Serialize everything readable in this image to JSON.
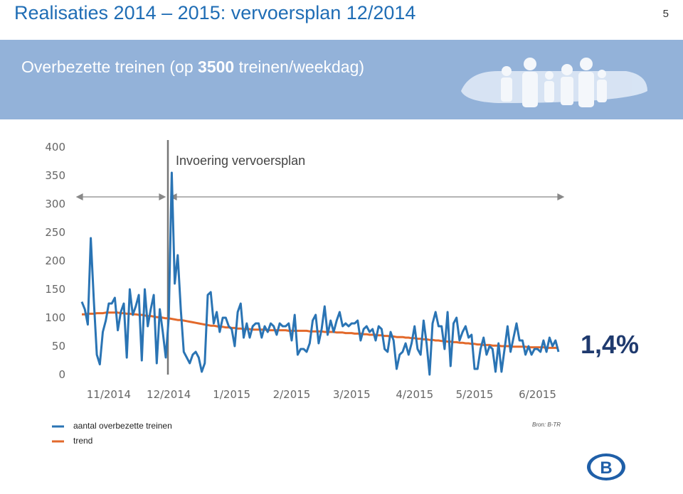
{
  "page_number": "5",
  "header": {
    "title": "Realisaties 2014 – 2015: vervoersplan 12/2014",
    "subtitle_parts": [
      "Overbezette treinen (op ",
      "3500",
      " treinen/weekdag)"
    ]
  },
  "source": "Bron: B-TR",
  "chart_data": {
    "type": "line",
    "annotations": [
      "Invoering vervoersplan",
      "1,4%"
    ],
    "categories": [
      null,
      null,
      null,
      null,
      null,
      null,
      null,
      null,
      null,
      "11/2014",
      null,
      null,
      null,
      null,
      null,
      null,
      null,
      null,
      null,
      null,
      null,
      null,
      null,
      null,
      null,
      null,
      null,
      null,
      null,
      "12/2014",
      null,
      null,
      null,
      null,
      null,
      null,
      null,
      null,
      null,
      null,
      null,
      null,
      null,
      null,
      null,
      null,
      null,
      null,
      null,
      null,
      "1/2015",
      null,
      null,
      null,
      null,
      null,
      null,
      null,
      null,
      null,
      null,
      null,
      null,
      null,
      null,
      null,
      null,
      null,
      null,
      null,
      "2/2015",
      null,
      null,
      null,
      null,
      null,
      null,
      null,
      null,
      null,
      null,
      null,
      null,
      null,
      null,
      null,
      null,
      null,
      null,
      null,
      "3/2015",
      null,
      null,
      null,
      null,
      null,
      null,
      null,
      null,
      null,
      null,
      null,
      null,
      null,
      null,
      null,
      null,
      null,
      null,
      null,
      null,
      "4/2015",
      null,
      null,
      null,
      null,
      null,
      null,
      null,
      null,
      null,
      null,
      null,
      null,
      null,
      null,
      null,
      null,
      null,
      null,
      null,
      "5/2015",
      null,
      null,
      null,
      null,
      null,
      null,
      null,
      null,
      null,
      null,
      null,
      null,
      null,
      null,
      null,
      null,
      null,
      null,
      null,
      null,
      "6/2015",
      null,
      null,
      null,
      null,
      null,
      null,
      null
    ],
    "series": [
      {
        "name": "aantal overbezette treinen",
        "color": "#2a74b4",
        "values": [
          128,
          115,
          88,
          240,
          130,
          35,
          18,
          75,
          95,
          125,
          125,
          135,
          78,
          110,
          125,
          30,
          150,
          105,
          120,
          140,
          25,
          150,
          85,
          115,
          140,
          20,
          115,
          75,
          30,
          100,
          355,
          160,
          210,
          115,
          40,
          30,
          20,
          35,
          40,
          30,
          5,
          20,
          140,
          145,
          90,
          110,
          75,
          100,
          100,
          85,
          80,
          50,
          110,
          125,
          65,
          90,
          65,
          85,
          90,
          90,
          65,
          85,
          75,
          90,
          85,
          70,
          90,
          85,
          85,
          90,
          60,
          105,
          35,
          45,
          45,
          40,
          55,
          95,
          105,
          55,
          80,
          120,
          70,
          95,
          75,
          95,
          110,
          85,
          90,
          85,
          90,
          90,
          95,
          60,
          80,
          85,
          75,
          80,
          60,
          85,
          80,
          45,
          40,
          75,
          60,
          10,
          35,
          40,
          55,
          35,
          55,
          85,
          45,
          35,
          95,
          55,
          0,
          90,
          110,
          85,
          85,
          45,
          110,
          15,
          90,
          100,
          60,
          75,
          85,
          65,
          70,
          10,
          10,
          45,
          65,
          35,
          50,
          45,
          5,
          55,
          5,
          45,
          85,
          40,
          65,
          90,
          60,
          60,
          35,
          50,
          35,
          45,
          45,
          40,
          60,
          40,
          65,
          50,
          60,
          40
        ]
      },
      {
        "name": "trend",
        "color": "#e2692b",
        "values": [
          106,
          106,
          107,
          107,
          107,
          108,
          108,
          108,
          109,
          109,
          109,
          109,
          109,
          108,
          108,
          107,
          107,
          106,
          106,
          105,
          105,
          104,
          103,
          103,
          102,
          101,
          101,
          100,
          99,
          99,
          98,
          97,
          96,
          96,
          95,
          94,
          93,
          92,
          91,
          90,
          89,
          88,
          87,
          86,
          86,
          85,
          84,
          84,
          83,
          83,
          82,
          82,
          81,
          81,
          80,
          80,
          80,
          79,
          79,
          79,
          79,
          79,
          78,
          78,
          78,
          78,
          78,
          78,
          78,
          77,
          77,
          77,
          77,
          77,
          77,
          77,
          76,
          76,
          76,
          76,
          76,
          75,
          75,
          75,
          75,
          74,
          74,
          74,
          73,
          73,
          73,
          72,
          72,
          72,
          71,
          71,
          70,
          70,
          70,
          69,
          69,
          68,
          68,
          67,
          67,
          66,
          66,
          66,
          65,
          65,
          64,
          64,
          63,
          63,
          62,
          62,
          61,
          61,
          60,
          60,
          59,
          59,
          58,
          58,
          57,
          57,
          56,
          56,
          55,
          55,
          54,
          54,
          53,
          53,
          52,
          52,
          52,
          51,
          51,
          51,
          50,
          50,
          50,
          50,
          49,
          49,
          49,
          49,
          49,
          48,
          48,
          48,
          48,
          48,
          48,
          47,
          47,
          47,
          47,
          47
        ]
      }
    ],
    "ylim": [
      0,
      400
    ],
    "yticks": [
      0,
      50,
      100,
      150,
      200,
      250,
      300,
      350,
      400
    ],
    "grid": false
  }
}
